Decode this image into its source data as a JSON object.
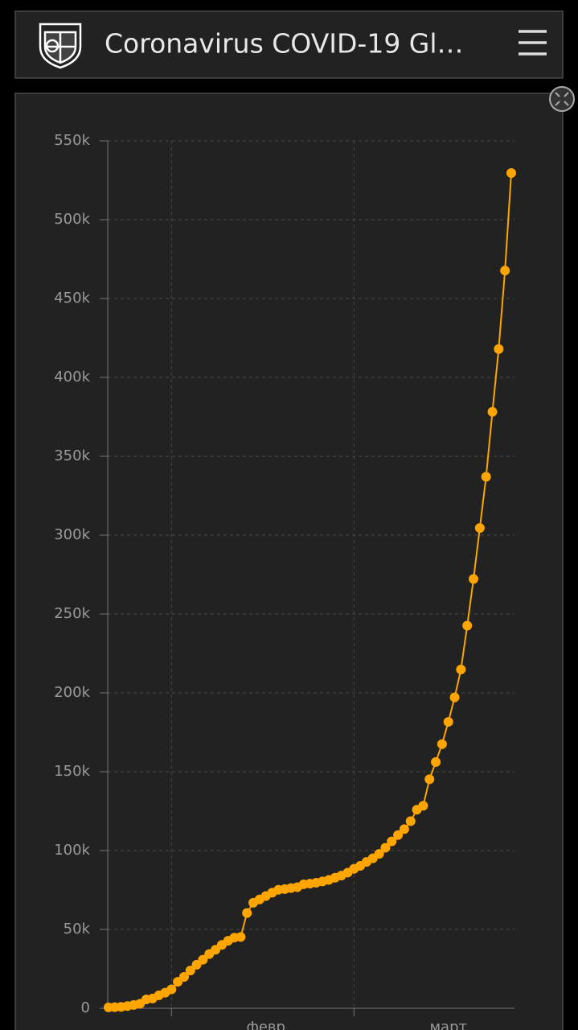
{
  "header": {
    "title": "Coronavirus COVID-19 Gl…"
  },
  "chart_data": {
    "type": "line",
    "categories": [
      null,
      null,
      null,
      null,
      null,
      null,
      null,
      null,
      null,
      null,
      null,
      null,
      null,
      null,
      null,
      null,
      null,
      null,
      null,
      null,
      null,
      null,
      null,
      null,
      null,
      "февр",
      null,
      null,
      null,
      null,
      null,
      null,
      null,
      null,
      null,
      null,
      null,
      null,
      null,
      null,
      null,
      null,
      null,
      null,
      null,
      null,
      null,
      null,
      null,
      null,
      null,
      null,
      null,
      null,
      "март",
      null,
      null,
      null,
      null,
      null,
      null,
      null,
      null,
      null,
      null
    ],
    "values": [
      600,
      700,
      900,
      1400,
      2100,
      2900,
      5600,
      6200,
      8200,
      9900,
      12000,
      16800,
      19900,
      23900,
      27600,
      30800,
      34400,
      37100,
      40200,
      42800,
      44800,
      45200,
      60400,
      66900,
      69000,
      71200,
      73300,
      75100,
      75600,
      76200,
      76800,
      78600,
      79000,
      79600,
      80400,
      81400,
      82800,
      84100,
      86000,
      88400,
      90300,
      92800,
      95100,
      97900,
      101800,
      105800,
      109800,
      113600,
      118600,
      125900,
      128400,
      145200,
      156100,
      167500,
      181600,
      197100,
      214800,
      242600,
      272200,
      304500,
      337000,
      378200,
      418000,
      467700,
      529600
    ],
    "color": "#ffa500",
    "ylim": [
      0,
      550000
    ],
    "yticks": [
      0,
      {
        "value": 50000,
        "label": "50k"
      },
      {
        "value": 100000,
        "label": "100k"
      },
      {
        "value": 150000,
        "label": "150k"
      },
      {
        "value": 200000,
        "label": "200k"
      },
      {
        "value": 250000,
        "label": "250k"
      },
      {
        "value": 300000,
        "label": "300k"
      },
      {
        "value": 350000,
        "label": "350k"
      },
      {
        "value": 400000,
        "label": "400k"
      },
      {
        "value": 450000,
        "label": "450k"
      },
      {
        "value": 500000,
        "label": "500k"
      },
      {
        "value": 550000,
        "label": "550k"
      }
    ],
    "grid": true
  }
}
